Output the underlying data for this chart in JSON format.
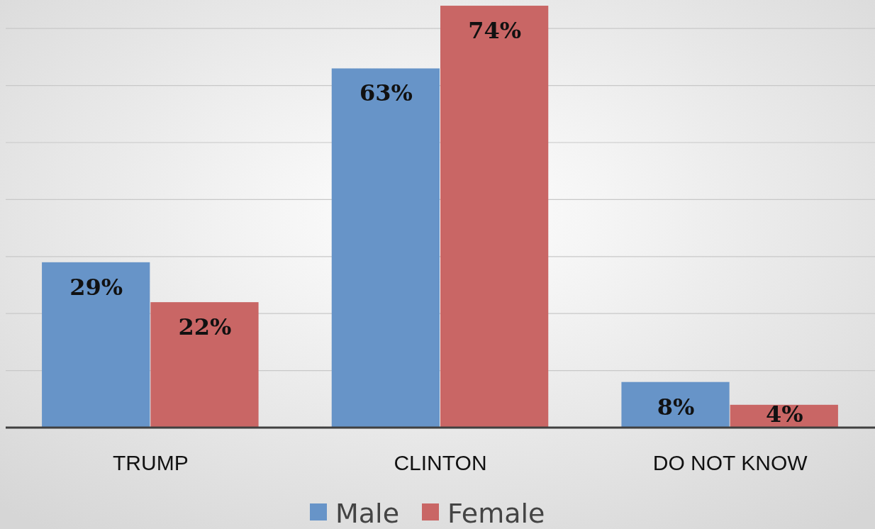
{
  "chart_data": {
    "type": "bar",
    "categories": [
      "TRUMP",
      "CLINTON",
      "DO NOT KNOW"
    ],
    "series": [
      {
        "name": "Male",
        "color": "#6794c8",
        "values": [
          29,
          63,
          8
        ],
        "value_labels": [
          "29%",
          "63%",
          "8%"
        ]
      },
      {
        "name": "Female",
        "color": "#c96665",
        "values": [
          22,
          74,
          4
        ],
        "value_labels": [
          "22%",
          "74%",
          "4%"
        ]
      }
    ],
    "ylim": [
      0,
      75
    ],
    "yticks": [
      {
        "value": 0,
        "label": null
      },
      {
        "value": 10,
        "label": null
      },
      {
        "value": 20,
        "label": null
      },
      {
        "value": 30,
        "label": null
      },
      {
        "value": 40,
        "label": null
      },
      {
        "value": 50,
        "label": null
      },
      {
        "value": 60,
        "label": null
      },
      {
        "value": 70,
        "label": null
      }
    ],
    "grid": "y",
    "legend": "bottom",
    "tick_labels": "x"
  }
}
